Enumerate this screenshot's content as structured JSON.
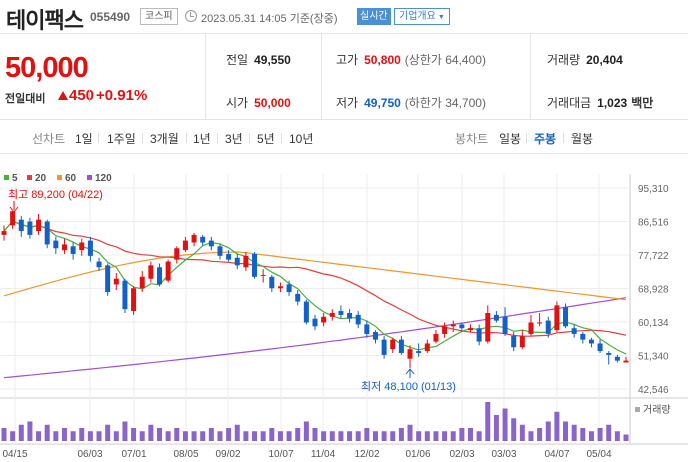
{
  "header": {
    "stock_name": "테이팩스",
    "stock_code": "055490",
    "market": "코스피",
    "datetime": "2023.05.31 14:05 기준(장중)",
    "realtime_label": "실시간",
    "company_label": "기업개요"
  },
  "quote": {
    "price": "50,000",
    "change_label": "전일대비",
    "change_amount": "450",
    "change_rate": "+0.91%",
    "prev_close_label": "전일",
    "prev_close": "49,550",
    "open_label": "시가",
    "open": "50,000",
    "high_label": "고가",
    "high": "50,800",
    "upper_limit": "(상한가 64,400)",
    "low_label": "저가",
    "low": "49,750",
    "lower_limit": "(하한가 34,700)",
    "volume_label": "거래량",
    "volume": "20,404",
    "amount_label": "거래대금",
    "amount": "1,023",
    "amount_unit": "백만"
  },
  "period_bar": {
    "line_chart_label": "선차트",
    "line_periods": [
      "1일",
      "1주일",
      "3개월",
      "1년",
      "3년",
      "5년",
      "10년"
    ],
    "candle_chart_label": "봉차트",
    "candle_periods": [
      "일봉",
      "주봉",
      "월봉"
    ],
    "active_candle": "주봉"
  },
  "colors": {
    "up": "#e01111",
    "down": "#1261c4",
    "ma5": "#4cae3c",
    "ma20": "#e04040",
    "ma60": "#f0962e",
    "ma120": "#a050d0",
    "volume": "#8a64c8"
  },
  "chart_data": {
    "type": "candlestick",
    "legend": [
      {
        "name": "5",
        "color": "#4cae3c"
      },
      {
        "name": "20",
        "color": "#e04040"
      },
      {
        "name": "60",
        "color": "#f0962e"
      },
      {
        "name": "120",
        "color": "#a050d0"
      }
    ],
    "y_ticks": [
      "95,310",
      "86,516",
      "77,722",
      "68,928",
      "60,134",
      "51,340",
      "42,546"
    ],
    "ylim": [
      42546,
      95310
    ],
    "x_labels": [
      "04/15",
      "06/03",
      "07/01",
      "08/05",
      "09/02",
      "10/07",
      "11/04",
      "12/02",
      "01/06",
      "02/03",
      "03/03",
      "04/07",
      "05/04"
    ],
    "high_annotation": "최고 89,200 (04/22)",
    "low_annotation": "최저 48,100 (01/13)",
    "volume_label": "거래량",
    "candles": [
      {
        "o": 83000,
        "c": 84000,
        "h": 85500,
        "l": 81500
      },
      {
        "o": 85500,
        "c": 89200,
        "h": 89200,
        "l": 84500
      },
      {
        "o": 87000,
        "c": 84000,
        "h": 88000,
        "l": 82500
      },
      {
        "o": 86500,
        "c": 83000,
        "h": 87500,
        "l": 82000
      },
      {
        "o": 84000,
        "c": 87000,
        "h": 88500,
        "l": 83000
      },
      {
        "o": 86500,
        "c": 80500,
        "h": 87000,
        "l": 79500
      },
      {
        "o": 81500,
        "c": 79500,
        "h": 82500,
        "l": 78000
      },
      {
        "o": 79000,
        "c": 80500,
        "h": 82000,
        "l": 78000
      },
      {
        "o": 80000,
        "c": 78000,
        "h": 81000,
        "l": 76500
      },
      {
        "o": 79000,
        "c": 81000,
        "h": 82000,
        "l": 77500
      },
      {
        "o": 81500,
        "c": 77500,
        "h": 82500,
        "l": 76000
      },
      {
        "o": 76000,
        "c": 74500,
        "h": 77000,
        "l": 73500
      },
      {
        "o": 75000,
        "c": 68000,
        "h": 75500,
        "l": 67000
      },
      {
        "o": 70000,
        "c": 71500,
        "h": 73000,
        "l": 68500
      },
      {
        "o": 71000,
        "c": 63500,
        "h": 71500,
        "l": 62500
      },
      {
        "o": 63000,
        "c": 69000,
        "h": 69500,
        "l": 62000
      },
      {
        "o": 69000,
        "c": 72000,
        "h": 73500,
        "l": 68000
      },
      {
        "o": 71500,
        "c": 75000,
        "h": 76000,
        "l": 70500
      },
      {
        "o": 74500,
        "c": 70000,
        "h": 75500,
        "l": 69500
      },
      {
        "o": 71000,
        "c": 76000,
        "h": 76500,
        "l": 70500
      },
      {
        "o": 76500,
        "c": 79500,
        "h": 80000,
        "l": 75500
      },
      {
        "o": 79000,
        "c": 81500,
        "h": 82500,
        "l": 78500
      },
      {
        "o": 81000,
        "c": 83000,
        "h": 83500,
        "l": 80000
      },
      {
        "o": 82500,
        "c": 81000,
        "h": 83000,
        "l": 80000
      },
      {
        "o": 81500,
        "c": 80000,
        "h": 82500,
        "l": 79000
      },
      {
        "o": 80000,
        "c": 77500,
        "h": 80500,
        "l": 76500
      },
      {
        "o": 78000,
        "c": 76500,
        "h": 79000,
        "l": 76000
      },
      {
        "o": 77000,
        "c": 75000,
        "h": 78000,
        "l": 74000
      },
      {
        "o": 74500,
        "c": 77500,
        "h": 78500,
        "l": 73500
      },
      {
        "o": 78000,
        "c": 72000,
        "h": 78500,
        "l": 71500
      },
      {
        "o": 72500,
        "c": 72500,
        "h": 74000,
        "l": 70500
      },
      {
        "o": 72000,
        "c": 69000,
        "h": 72500,
        "l": 68000
      },
      {
        "o": 69000,
        "c": 69500,
        "h": 70500,
        "l": 68000
      },
      {
        "o": 70000,
        "c": 68000,
        "h": 71000,
        "l": 67000
      },
      {
        "o": 67500,
        "c": 65500,
        "h": 68500,
        "l": 64500
      },
      {
        "o": 65500,
        "c": 60000,
        "h": 66000,
        "l": 59500
      },
      {
        "o": 61000,
        "c": 59000,
        "h": 62000,
        "l": 58000
      },
      {
        "o": 60000,
        "c": 61500,
        "h": 62500,
        "l": 59000
      },
      {
        "o": 61500,
        "c": 62500,
        "h": 63500,
        "l": 60500
      },
      {
        "o": 63000,
        "c": 62000,
        "h": 64500,
        "l": 61000
      },
      {
        "o": 62500,
        "c": 61000,
        "h": 63500,
        "l": 60000
      },
      {
        "o": 62000,
        "c": 59500,
        "h": 63000,
        "l": 58500
      },
      {
        "o": 59500,
        "c": 57000,
        "h": 60500,
        "l": 56000
      },
      {
        "o": 57500,
        "c": 55500,
        "h": 58000,
        "l": 54500
      },
      {
        "o": 55500,
        "c": 51500,
        "h": 56500,
        "l": 50500
      },
      {
        "o": 53000,
        "c": 55500,
        "h": 56000,
        "l": 52000
      },
      {
        "o": 55500,
        "c": 52000,
        "h": 56500,
        "l": 51500
      },
      {
        "o": 50500,
        "c": 53000,
        "h": 54000,
        "l": 48100
      },
      {
        "o": 52500,
        "c": 52000,
        "h": 54500,
        "l": 51000
      },
      {
        "o": 52500,
        "c": 54500,
        "h": 55500,
        "l": 52000
      },
      {
        "o": 55000,
        "c": 57000,
        "h": 58000,
        "l": 54500
      },
      {
        "o": 57000,
        "c": 59000,
        "h": 60000,
        "l": 56000
      },
      {
        "o": 59000,
        "c": 59500,
        "h": 60500,
        "l": 57500
      },
      {
        "o": 59500,
        "c": 58500,
        "h": 60000,
        "l": 57500
      },
      {
        "o": 58000,
        "c": 58500,
        "h": 59500,
        "l": 57500
      },
      {
        "o": 58500,
        "c": 55000,
        "h": 59500,
        "l": 54000
      },
      {
        "o": 55000,
        "c": 62500,
        "h": 64500,
        "l": 54500
      },
      {
        "o": 62000,
        "c": 60500,
        "h": 63000,
        "l": 60000
      },
      {
        "o": 61500,
        "c": 57000,
        "h": 64000,
        "l": 56500
      },
      {
        "o": 56500,
        "c": 53500,
        "h": 57500,
        "l": 52500
      },
      {
        "o": 53500,
        "c": 56500,
        "h": 58000,
        "l": 53000
      },
      {
        "o": 57000,
        "c": 60000,
        "h": 62000,
        "l": 56500
      },
      {
        "o": 60000,
        "c": 60000,
        "h": 62500,
        "l": 59000
      },
      {
        "o": 60500,
        "c": 57000,
        "h": 61500,
        "l": 56000
      },
      {
        "o": 58000,
        "c": 64500,
        "h": 65500,
        "l": 57500
      },
      {
        "o": 64000,
        "c": 59000,
        "h": 65000,
        "l": 58500
      },
      {
        "o": 58500,
        "c": 57000,
        "h": 59500,
        "l": 56000
      },
      {
        "o": 57000,
        "c": 55500,
        "h": 57500,
        "l": 54500
      },
      {
        "o": 55500,
        "c": 54500,
        "h": 56000,
        "l": 53500
      },
      {
        "o": 54500,
        "c": 52500,
        "h": 55500,
        "l": 52000
      },
      {
        "o": 52000,
        "c": 51500,
        "h": 52500,
        "l": 49000
      },
      {
        "o": 51000,
        "c": 50000,
        "h": 51500,
        "l": 49500
      },
      {
        "o": 49500,
        "c": 50000,
        "h": 51000,
        "l": 49500
      }
    ],
    "volumes": [
      4,
      3,
      5,
      6,
      3,
      5,
      3,
      4,
      3,
      4,
      3,
      3,
      5,
      3,
      6,
      4,
      3,
      5,
      4,
      3,
      4,
      3,
      3,
      3,
      4,
      3,
      4,
      5,
      3,
      3,
      3,
      4,
      3,
      3,
      4,
      6,
      4,
      3,
      3,
      3,
      3,
      3,
      4,
      3,
      3,
      3,
      4,
      5,
      3,
      3,
      3,
      3,
      3,
      4,
      4,
      3,
      12,
      8,
      10,
      7,
      5,
      3,
      4,
      6,
      9,
      6,
      5,
      4,
      3,
      4,
      5,
      3,
      2
    ]
  }
}
